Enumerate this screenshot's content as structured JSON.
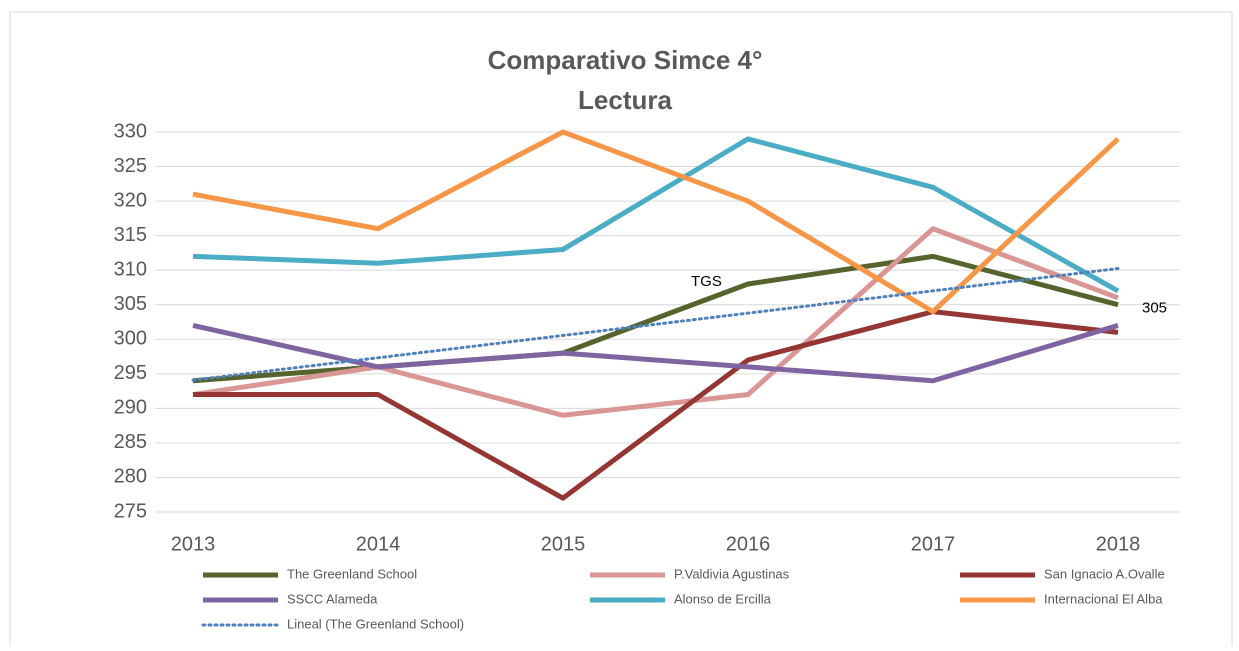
{
  "chart_data": {
    "type": "line",
    "title": "Comparativo Simce 4°",
    "subtitle": "Lectura",
    "categories": [
      "2013",
      "2014",
      "2015",
      "2016",
      "2017",
      "2018"
    ],
    "series": [
      {
        "name": "The Greenland School",
        "color": "#55632d",
        "values": [
          294,
          296,
          298,
          308,
          312,
          305
        ]
      },
      {
        "name": "P.Valdivia Agustinas",
        "color": "#d99694",
        "values": [
          292,
          296,
          289,
          292,
          316,
          306
        ]
      },
      {
        "name": "San Ignacio A.Ovalle",
        "color": "#943634",
        "values": [
          292,
          292,
          277,
          297,
          304,
          301
        ]
      },
      {
        "name": "SSCC Alameda",
        "color": "#8064a2",
        "values": [
          302,
          296,
          298,
          296,
          294,
          302
        ]
      },
      {
        "name": "Alonso de Ercilla",
        "color": "#4bacc6",
        "values": [
          312,
          311,
          313,
          329,
          322,
          307
        ]
      },
      {
        "name": "Internacional El Alba",
        "color": "#f79646",
        "values": [
          321,
          316,
          330,
          320,
          304,
          329
        ]
      }
    ],
    "trendline": {
      "name": "Lineal (The Greenland School)",
      "color": "#4f81bd",
      "style": "dotted"
    },
    "annotations": [
      "TGS"
    ],
    "ylim": [
      275,
      330
    ],
    "yticks": [
      275,
      280,
      285,
      290,
      295,
      300,
      305,
      310,
      315,
      320,
      325,
      330
    ],
    "grid": true
  }
}
